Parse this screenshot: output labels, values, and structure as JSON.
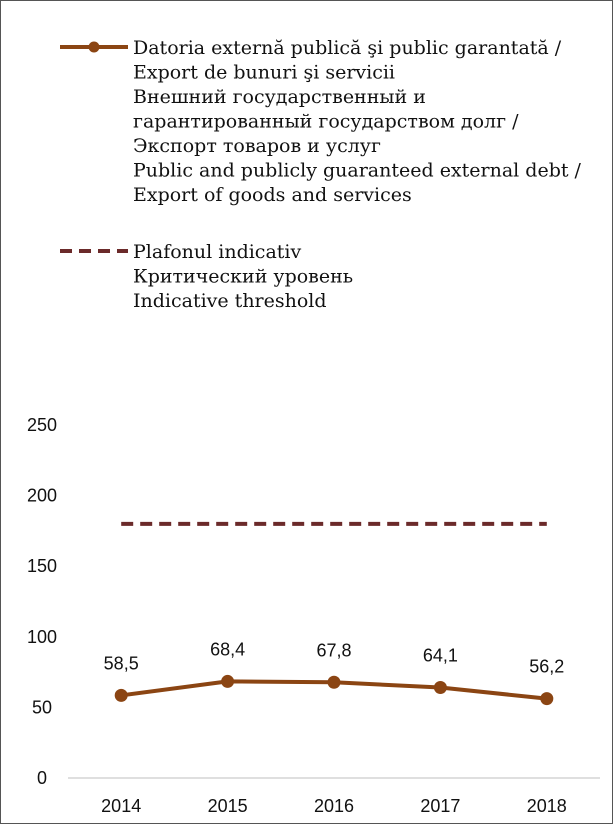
{
  "chart_data": {
    "type": "line",
    "categories": [
      "2014",
      "2015",
      "2016",
      "2017",
      "2018"
    ],
    "ylim": [
      0,
      250
    ],
    "yticks": [
      0,
      50,
      100,
      150,
      200,
      250
    ],
    "grid": false,
    "legend_position": "top",
    "series": [
      {
        "name": "Datoria externă publică şi public garantată / Export de bunuri şi servicii Внешний государственный и гарантированный государством долг / Экспорт товаров и услуг Public and publicly guaranteed external debt / Export of goods and services",
        "legend_lines": [
          "Datoria externă publică şi public garantată /",
          "Export de bunuri şi servicii",
          "Внешний государственный и",
          "гарантированный государством долг /",
          "Экспорт товаров и услуг",
          "Public and publicly guaranteed external debt /",
          "Export of goods and services"
        ],
        "style": "solid-with-markers",
        "color": "#8B4513",
        "values": [
          58.5,
          68.4,
          67.8,
          64.1,
          56.2
        ],
        "labels": [
          "58,5",
          "68,4",
          "67,8",
          "64,1",
          "56,2"
        ]
      },
      {
        "name": "Plafonul indicativ Критический уровень Indicative threshold",
        "legend_lines": [
          "Plafonul indicativ",
          "Критический уровень",
          "Indicative threshold"
        ],
        "style": "dashed",
        "color": "#6B2A2A",
        "values": [
          180,
          180,
          180,
          180,
          180
        ]
      }
    ]
  }
}
